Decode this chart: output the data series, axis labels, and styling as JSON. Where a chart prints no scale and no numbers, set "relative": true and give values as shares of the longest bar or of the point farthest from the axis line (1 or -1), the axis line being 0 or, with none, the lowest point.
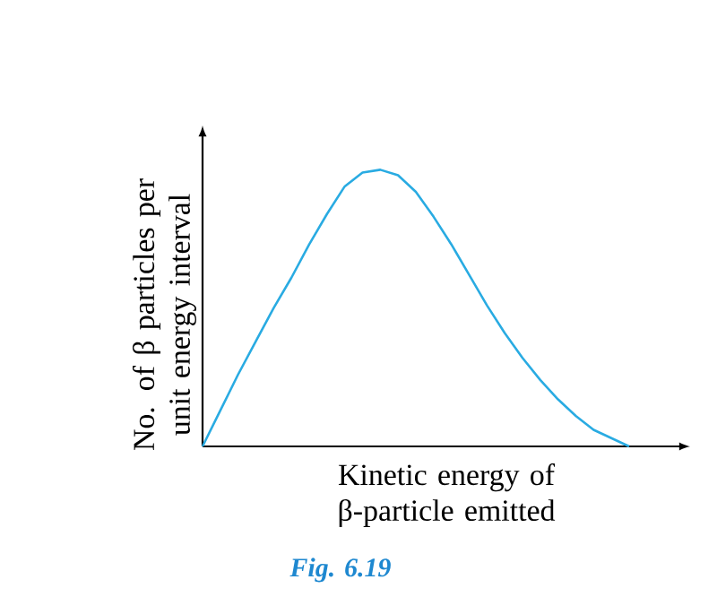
{
  "chart_data": {
    "type": "line",
    "relative": true,
    "color": "#29abe2",
    "marker": "none",
    "line_style": "solid",
    "xlabel": "Kinetic energy of β-particle emitted",
    "ylabel": "No. of β particles per unit energy interval",
    "annotations": [
      "Fig. 6.19"
    ],
    "categories": [
      null,
      null,
      null,
      null,
      null,
      null,
      null,
      null,
      null,
      null,
      null,
      null,
      null,
      null,
      null,
      null,
      null,
      null,
      null,
      null,
      null,
      null,
      null,
      null,
      null
    ],
    "values": [
      0,
      0.13,
      0.26,
      0.38,
      0.5,
      0.61,
      0.73,
      0.84,
      0.94,
      0.99,
      1,
      0.98,
      0.92,
      0.83,
      0.73,
      0.62,
      0.51,
      0.41,
      0.32,
      0.24,
      0.17,
      0.11,
      0.06,
      0.03,
      0
    ]
  }
}
